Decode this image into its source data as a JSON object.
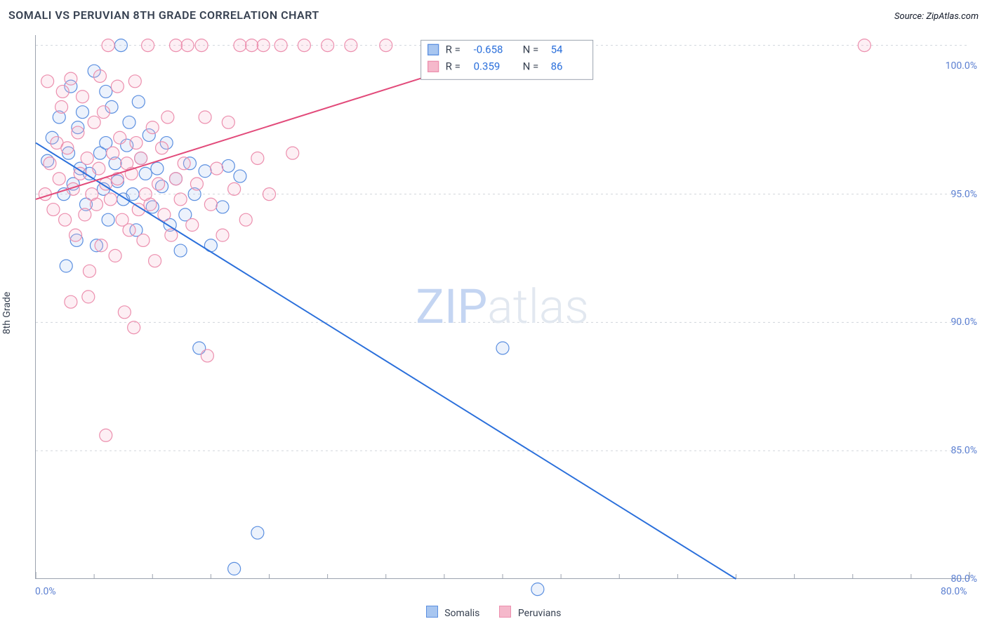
{
  "title": "SOMALI VS PERUVIAN 8TH GRADE CORRELATION CHART",
  "source_label": "Source:",
  "source_value": "ZipAtlas.com",
  "ylabel": "8th Grade",
  "background_color": "#ffffff",
  "text_color": "#374151",
  "axis_color": "#9ca3af",
  "grid_color": "#d1d5db",
  "tick_color": "#9ca3af",
  "tick_label_color": "#5b7fd1",
  "title_fontsize": 16,
  "title_color": "#374151",
  "label_fontsize": 14,
  "watermark": {
    "text_a": "ZIP",
    "text_b": "atlas",
    "color_a": "#c4d5f2",
    "color_b": "#e2e8f0",
    "fontsize": 68
  },
  "chart": {
    "type": "scatter",
    "xlim": [
      0,
      80
    ],
    "ylim": [
      80,
      101.2
    ],
    "x_ticks_major": [
      0,
      80
    ],
    "x_tick_labels": [
      "0.0%",
      "80.0%"
    ],
    "x_ticks_minor": [
      5,
      10,
      15,
      20,
      25,
      30,
      35,
      40,
      45,
      50,
      55,
      60,
      65,
      70,
      75
    ],
    "y_ticks_major": [
      80,
      85,
      90,
      95,
      100
    ],
    "y_tick_labels": [
      "80.0%",
      "85.0%",
      "90.0%",
      "95.0%",
      "100.0%"
    ],
    "gridlines_y": [
      85,
      90,
      95,
      100.8
    ],
    "marker_radius": 9,
    "marker_stroke_width": 1.2,
    "marker_fill_opacity": 0.22,
    "line_width": 2,
    "series": [
      {
        "id": "somalis",
        "label": "Somalis",
        "color": "#2a6fdb",
        "fill": "#a8c6f0",
        "stroke": "#5b8fe0",
        "R": -0.658,
        "N": 54,
        "regression": {
          "x0": 0,
          "y0": 97.0,
          "x1": 60,
          "y1": 80.0
        },
        "points": [
          [
            1,
            96.3
          ],
          [
            1.4,
            97.2
          ],
          [
            2,
            98.0
          ],
          [
            2.4,
            95.0
          ],
          [
            2.8,
            96.6
          ],
          [
            3,
            99.2
          ],
          [
            3.2,
            95.4
          ],
          [
            3.5,
            93.2
          ],
          [
            3.6,
            97.6
          ],
          [
            3.8,
            96.0
          ],
          [
            4,
            98.2
          ],
          [
            4.3,
            94.6
          ],
          [
            4.6,
            95.8
          ],
          [
            5,
            99.8
          ],
          [
            5.2,
            93.0
          ],
          [
            5.5,
            96.6
          ],
          [
            5.8,
            95.2
          ],
          [
            6,
            97.0
          ],
          [
            6.2,
            94.0
          ],
          [
            6.5,
            98.4
          ],
          [
            6.8,
            96.2
          ],
          [
            7,
            95.5
          ],
          [
            7.3,
            100.8
          ],
          [
            7.5,
            94.8
          ],
          [
            7.8,
            96.9
          ],
          [
            8,
            97.8
          ],
          [
            8.3,
            95.0
          ],
          [
            8.6,
            93.6
          ],
          [
            9,
            96.4
          ],
          [
            9.4,
            95.8
          ],
          [
            9.7,
            97.3
          ],
          [
            10,
            94.5
          ],
          [
            10.4,
            96.0
          ],
          [
            10.8,
            95.3
          ],
          [
            11.2,
            97.0
          ],
          [
            11.5,
            93.8
          ],
          [
            12,
            95.6
          ],
          [
            12.4,
            92.8
          ],
          [
            12.8,
            94.2
          ],
          [
            13.2,
            96.2
          ],
          [
            13.6,
            95.0
          ],
          [
            14,
            89.0
          ],
          [
            14.5,
            95.9
          ],
          [
            15,
            93.0
          ],
          [
            16,
            94.5
          ],
          [
            16.5,
            96.1
          ],
          [
            17,
            80.4
          ],
          [
            17.5,
            95.7
          ],
          [
            19,
            81.8
          ],
          [
            40,
            89.0
          ],
          [
            43,
            79.6
          ],
          [
            2.6,
            92.2
          ],
          [
            6.0,
            99.0
          ],
          [
            8.8,
            98.6
          ]
        ]
      },
      {
        "id": "peruvians",
        "label": "Peruvians",
        "color": "#e24a7a",
        "fill": "#f5b8cb",
        "stroke": "#ec8fae",
        "R": 0.359,
        "N": 86,
        "regression": {
          "x0": 0,
          "y0": 94.8,
          "x1": 35,
          "y1": 99.8
        },
        "points": [
          [
            0.8,
            95.0
          ],
          [
            1.2,
            96.2
          ],
          [
            1.5,
            94.4
          ],
          [
            1.8,
            97.0
          ],
          [
            2,
            95.6
          ],
          [
            2.2,
            98.4
          ],
          [
            2.5,
            94.0
          ],
          [
            2.7,
            96.8
          ],
          [
            3,
            99.5
          ],
          [
            3.2,
            95.2
          ],
          [
            3.4,
            93.4
          ],
          [
            3.6,
            97.4
          ],
          [
            3.8,
            95.8
          ],
          [
            4,
            98.8
          ],
          [
            4.2,
            94.2
          ],
          [
            4.4,
            96.4
          ],
          [
            4.6,
            92.0
          ],
          [
            4.8,
            95.0
          ],
          [
            5,
            97.8
          ],
          [
            5.2,
            94.6
          ],
          [
            5.4,
            96.0
          ],
          [
            5.6,
            93.0
          ],
          [
            5.8,
            98.2
          ],
          [
            6,
            95.4
          ],
          [
            6,
            85.6
          ],
          [
            6.2,
            100.8
          ],
          [
            6.4,
            94.8
          ],
          [
            6.6,
            96.6
          ],
          [
            6.8,
            92.6
          ],
          [
            7,
            95.6
          ],
          [
            7.2,
            97.2
          ],
          [
            7.4,
            94.0
          ],
          [
            7.6,
            90.4
          ],
          [
            7.8,
            96.2
          ],
          [
            8,
            93.6
          ],
          [
            8.2,
            95.8
          ],
          [
            8.4,
            89.8
          ],
          [
            8.6,
            97.0
          ],
          [
            8.8,
            94.4
          ],
          [
            9,
            96.4
          ],
          [
            9.2,
            93.2
          ],
          [
            9.4,
            95.0
          ],
          [
            9.6,
            100.8
          ],
          [
            9.8,
            94.6
          ],
          [
            10,
            97.6
          ],
          [
            10.2,
            92.4
          ],
          [
            10.5,
            95.4
          ],
          [
            10.8,
            96.8
          ],
          [
            11,
            94.2
          ],
          [
            11.3,
            98.0
          ],
          [
            11.6,
            93.4
          ],
          [
            12,
            95.6
          ],
          [
            12,
            100.8
          ],
          [
            12.4,
            94.8
          ],
          [
            12.7,
            96.2
          ],
          [
            13,
            100.8
          ],
          [
            13.4,
            93.8
          ],
          [
            13.8,
            95.4
          ],
          [
            14.2,
            100.8
          ],
          [
            14.5,
            98.0
          ],
          [
            14.7,
            88.7
          ],
          [
            15,
            94.6
          ],
          [
            15.5,
            96.0
          ],
          [
            16,
            93.4
          ],
          [
            16.5,
            97.8
          ],
          [
            17,
            95.2
          ],
          [
            17.5,
            100.8
          ],
          [
            18,
            94.0
          ],
          [
            18.5,
            100.8
          ],
          [
            19,
            96.4
          ],
          [
            19.5,
            100.8
          ],
          [
            20,
            95.0
          ],
          [
            21,
            100.8
          ],
          [
            22,
            96.6
          ],
          [
            23,
            100.8
          ],
          [
            25,
            100.8
          ],
          [
            27,
            100.8
          ],
          [
            30,
            100.8
          ],
          [
            71,
            100.8
          ],
          [
            1.0,
            99.4
          ],
          [
            2.3,
            99.0
          ],
          [
            3.0,
            90.8
          ],
          [
            4.5,
            91.0
          ],
          [
            5.5,
            99.6
          ],
          [
            7.0,
            99.2
          ],
          [
            8.5,
            99.4
          ]
        ]
      }
    ]
  },
  "stats_box": {
    "border_color": "#9ca3af",
    "bg": "#ffffff",
    "text_color": "#374151",
    "value_color": "#2a6fdb",
    "fontsize": 15
  },
  "legend": {
    "fontsize": 14,
    "swatch_size": 15
  }
}
